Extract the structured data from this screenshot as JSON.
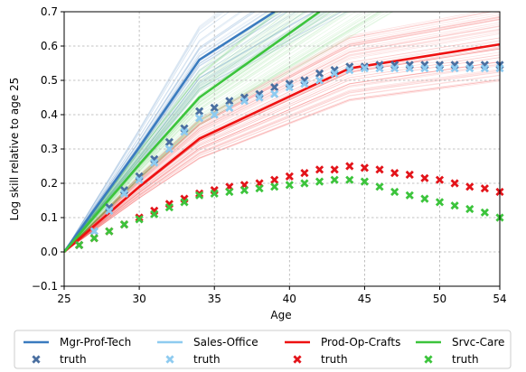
{
  "chart_data": {
    "type": "line",
    "title": "",
    "xlabel": "Age",
    "ylabel": "Log skill relative to age 25",
    "xlim": [
      25,
      54
    ],
    "ylim": [
      -0.1,
      0.7
    ],
    "xticks": [
      25,
      30,
      35,
      40,
      45,
      50,
      54
    ],
    "yticks": [
      -0.1,
      0.0,
      0.1,
      0.2,
      0.3,
      0.4,
      0.5,
      0.6,
      0.7
    ],
    "grid": true,
    "legend_placement": "below plot, 4 columns",
    "series": [
      {
        "name": "Mgr-Prof-Tech",
        "color": "#3a7bbf",
        "model_x": [
          25,
          30,
          34,
          39
        ],
        "model_y": [
          0.0,
          0.305,
          0.56,
          0.7
        ],
        "truth_color": "#4a6fa0",
        "truth_x": [
          26,
          27,
          28,
          29,
          30,
          31,
          32,
          33,
          34,
          35,
          36,
          37,
          38,
          39,
          40,
          41,
          42,
          43,
          44,
          45,
          46,
          47,
          48,
          49,
          50,
          51,
          52,
          53,
          54
        ],
        "truth_y": [
          0.02,
          0.06,
          0.13,
          0.18,
          0.22,
          0.27,
          0.32,
          0.36,
          0.41,
          0.42,
          0.44,
          0.45,
          0.46,
          0.48,
          0.49,
          0.5,
          0.52,
          0.53,
          0.54,
          0.54,
          0.545,
          0.545,
          0.545,
          0.545,
          0.545,
          0.545,
          0.545,
          0.545,
          0.545
        ]
      },
      {
        "name": "Sales-Office",
        "color": "#8ecbf0",
        "truth_color": "#8ecbf0",
        "truth_x": [
          26,
          27,
          28,
          29,
          30,
          31,
          32,
          33,
          34,
          35,
          36,
          37,
          38,
          39,
          40,
          41,
          42,
          43,
          44,
          45,
          46,
          47,
          48,
          49,
          50,
          51,
          52,
          53,
          54
        ],
        "truth_y": [
          0.02,
          0.06,
          0.12,
          0.17,
          0.21,
          0.26,
          0.3,
          0.35,
          0.39,
          0.4,
          0.42,
          0.44,
          0.45,
          0.46,
          0.48,
          0.49,
          0.5,
          0.52,
          0.53,
          0.535,
          0.535,
          0.535,
          0.535,
          0.535,
          0.535,
          0.535,
          0.535,
          0.535,
          0.535
        ]
      },
      {
        "name": "Prod-Op-Crafts",
        "color": "#ee1111",
        "model_x": [
          25,
          30,
          34,
          44,
          54
        ],
        "model_y": [
          0.0,
          0.19,
          0.33,
          0.535,
          0.605
        ],
        "truth_color": "#e3141a",
        "truth_x": [
          26,
          27,
          28,
          29,
          30,
          31,
          32,
          33,
          34,
          35,
          36,
          37,
          38,
          39,
          40,
          41,
          42,
          43,
          44,
          45,
          46,
          47,
          48,
          49,
          50,
          51,
          52,
          53,
          54
        ],
        "truth_y": [
          0.02,
          0.04,
          0.06,
          0.08,
          0.1,
          0.12,
          0.14,
          0.155,
          0.17,
          0.18,
          0.19,
          0.195,
          0.2,
          0.21,
          0.22,
          0.23,
          0.24,
          0.24,
          0.25,
          0.245,
          0.24,
          0.23,
          0.225,
          0.215,
          0.21,
          0.2,
          0.19,
          0.185,
          0.175
        ]
      },
      {
        "name": "Srvc-Care",
        "color": "#3cc43c",
        "model_x": [
          25,
          30,
          34,
          42
        ],
        "model_y": [
          0.0,
          0.255,
          0.45,
          0.7
        ],
        "truth_color": "#3cc43c",
        "truth_x": [
          26,
          27,
          28,
          29,
          30,
          31,
          32,
          33,
          34,
          35,
          36,
          37,
          38,
          39,
          40,
          41,
          42,
          43,
          44,
          45,
          46,
          47,
          48,
          49,
          50,
          51,
          52,
          53,
          54
        ],
        "truth_y": [
          0.02,
          0.04,
          0.06,
          0.08,
          0.095,
          0.11,
          0.13,
          0.145,
          0.165,
          0.17,
          0.175,
          0.18,
          0.185,
          0.19,
          0.195,
          0.2,
          0.205,
          0.21,
          0.21,
          0.205,
          0.19,
          0.175,
          0.165,
          0.155,
          0.145,
          0.135,
          0.125,
          0.115,
          0.1
        ]
      }
    ],
    "legend": [
      {
        "label": "Mgr-Prof-Tech",
        "kind": "line",
        "color": "#3a7bbf"
      },
      {
        "label": "truth",
        "kind": "cross",
        "color": "#4a6fa0"
      },
      {
        "label": "Sales-Office",
        "kind": "line",
        "color": "#8ecbf0"
      },
      {
        "label": "truth",
        "kind": "cross",
        "color": "#8ecbf0"
      },
      {
        "label": "Prod-Op-Crafts",
        "kind": "line",
        "color": "#ee1111"
      },
      {
        "label": "truth",
        "kind": "cross",
        "color": "#e3141a"
      },
      {
        "label": "Srvc-Care",
        "kind": "line",
        "color": "#3cc43c"
      },
      {
        "label": "truth",
        "kind": "cross",
        "color": "#3cc43c"
      }
    ]
  }
}
